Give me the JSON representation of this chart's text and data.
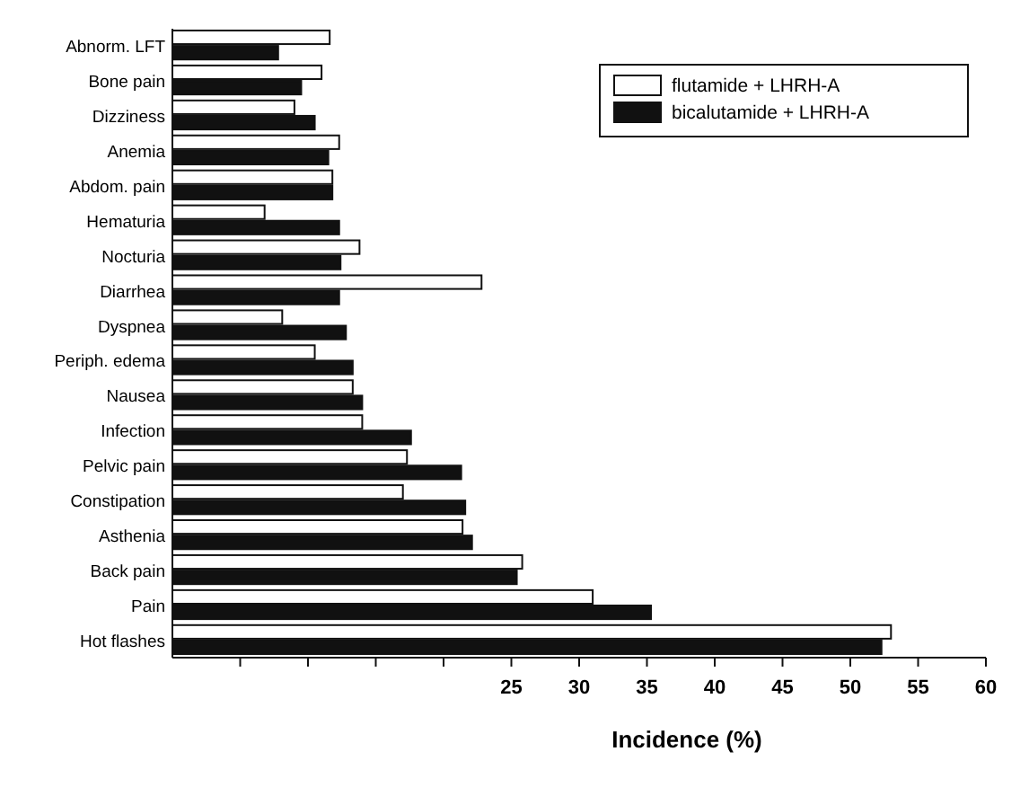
{
  "chart_data": {
    "type": "bar",
    "orientation": "horizontal",
    "xlabel": "Incidence (%)",
    "categories": [
      "Abnorm. LFT",
      "Bone pain",
      "Dizziness",
      "Anemia",
      "Abdom. pain",
      "Hematuria",
      "Nocturia",
      "Diarrhea",
      "Dyspnea",
      "Periph. edema",
      "Nausea",
      "Infection",
      "Pelvic pain",
      "Constipation",
      "Asthenia",
      "Back pain",
      "Pain",
      "Hot flashes"
    ],
    "series": [
      {
        "name": "flutamide + LHRH-A",
        "color": "#ffffff",
        "values": [
          11.6,
          11,
          9,
          12.3,
          11.8,
          6.8,
          13.8,
          22.8,
          8.1,
          10.5,
          13.3,
          14,
          17.3,
          17,
          21.4,
          25.8,
          31,
          53
        ]
      },
      {
        "name": "bicalutamide + LHRH-A",
        "color": "#111111",
        "values": [
          7.8,
          9.5,
          10.5,
          11.5,
          11.8,
          12.3,
          12.4,
          12.3,
          12.8,
          13.3,
          14,
          17.6,
          21.3,
          21.6,
          22.1,
          25.4,
          35.3,
          52.3
        ]
      }
    ],
    "xlim": [
      0,
      60
    ],
    "xticks": [
      {
        "value": 5,
        "label": null
      },
      {
        "value": 10,
        "label": null
      },
      {
        "value": 15,
        "label": null
      },
      {
        "value": 20,
        "label": null
      },
      25,
      30,
      35,
      40,
      45,
      50,
      55,
      60
    ],
    "legend": "top right"
  }
}
